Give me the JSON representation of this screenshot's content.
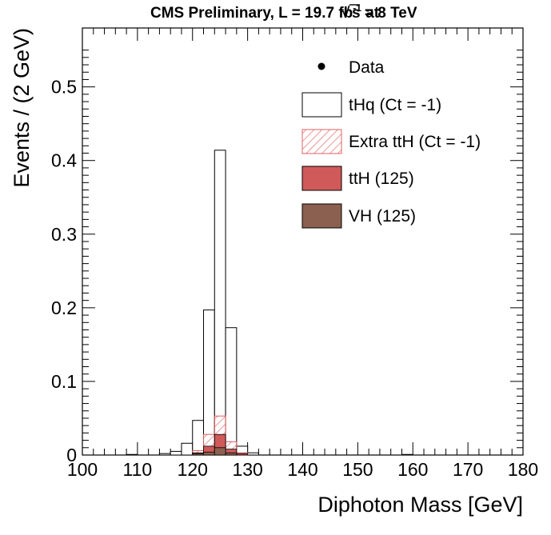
{
  "chart_data": {
    "type": "bar",
    "title_main": "CMS Preliminary, L = 19.7 fb",
    "title_sup": "-1",
    "title_at": " at ",
    "title_sqrt": "√",
    "title_s": "s = 8 TeV",
    "xlabel": "Diphoton Mass [GeV]",
    "ylabel": "Events / (2 GeV)",
    "xlim": [
      100,
      180
    ],
    "ylim": [
      0,
      0.58
    ],
    "xticks": [
      "100",
      "110",
      "120",
      "130",
      "140",
      "150",
      "160",
      "170",
      "180"
    ],
    "yticks": [
      "0",
      "0.1",
      "0.2",
      "0.3",
      "0.4",
      "0.5"
    ],
    "bin_edges": [
      100,
      102,
      104,
      106,
      108,
      110,
      112,
      114,
      116,
      118,
      120,
      122,
      124,
      126,
      128,
      130,
      132,
      134,
      136,
      138,
      140,
      142,
      144,
      146,
      148,
      150,
      152,
      154,
      156,
      158,
      160,
      162,
      164,
      166,
      168,
      170,
      172,
      174,
      176,
      178,
      180
    ],
    "series": [
      {
        "name": "tHq (Ct = -1)",
        "style": "outline",
        "color": "#000000",
        "bins": [
          [
            108,
            110,
            0.0008
          ],
          [
            114,
            116,
            0.002
          ],
          [
            116,
            118,
            0.005
          ],
          [
            118,
            120,
            0.016
          ],
          [
            120,
            122,
            0.047
          ],
          [
            122,
            124,
            0.197
          ],
          [
            124,
            126,
            0.414
          ],
          [
            126,
            128,
            0.173
          ],
          [
            128,
            130,
            0.012
          ],
          [
            130,
            132,
            0.003
          ],
          [
            158,
            160,
            0.0008
          ]
        ]
      },
      {
        "name": "Extra ttH (Ct = -1)",
        "style": "hatched",
        "color": "#e06060",
        "bins": [
          [
            120,
            122,
            0.006
          ],
          [
            122,
            124,
            0.028
          ],
          [
            124,
            126,
            0.053
          ],
          [
            126,
            128,
            0.018
          ],
          [
            128,
            130,
            0.003
          ]
        ]
      },
      {
        "name": "ttH (125)",
        "style": "filled",
        "color": "#d05a5a",
        "bins": [
          [
            120,
            122,
            0.003
          ],
          [
            122,
            124,
            0.012
          ],
          [
            124,
            126,
            0.028
          ],
          [
            126,
            128,
            0.008
          ],
          [
            128,
            130,
            0.002
          ]
        ]
      },
      {
        "name": "VH (125)",
        "style": "filled",
        "color": "#8b6050",
        "bins": [
          [
            120,
            122,
            0.002
          ],
          [
            122,
            124,
            0.004
          ],
          [
            124,
            126,
            0.01
          ],
          [
            126,
            128,
            0.003
          ]
        ]
      }
    ],
    "data_points": [],
    "legend": [
      {
        "label": "Data",
        "marker": "dot"
      },
      {
        "label": "tHq (Ct = -1)",
        "marker": "outline"
      },
      {
        "label": "Extra ttH (Ct = -1)",
        "marker": "hatched"
      },
      {
        "label": "ttH (125)",
        "marker": "filled-red"
      },
      {
        "label": "VH (125)",
        "marker": "filled-brown"
      }
    ],
    "legend_position": "top-right"
  }
}
